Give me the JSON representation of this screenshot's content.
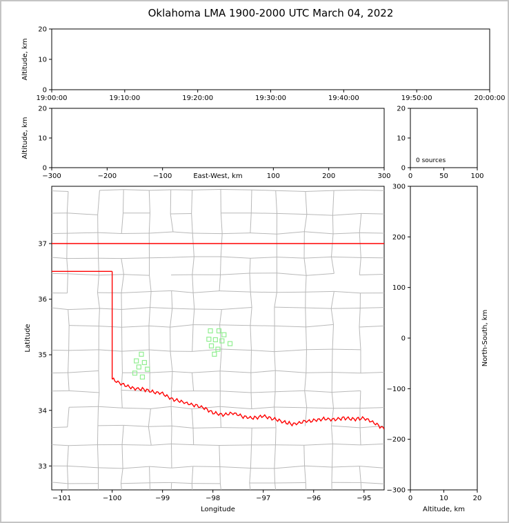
{
  "title": "Oklahoma LMA 1900-2000 UTC March 04, 2022",
  "colors": {
    "state_boundary": "#ff0000",
    "county_lines": "#b8b8b8",
    "source_marker": "#90ee90",
    "axis": "#000000"
  },
  "chart_data": [
    {
      "id": "time_height",
      "type": "scatter",
      "xlabel": "",
      "ylabel": "Altitude, km",
      "ylim": [
        0,
        20
      ],
      "xticks": [
        "19:00:00",
        "19:10:00",
        "19:20:00",
        "19:30:00",
        "19:40:00",
        "19:50:00",
        "20:00:00"
      ],
      "yticks": [
        0,
        10,
        20
      ],
      "points": []
    },
    {
      "id": "ew_height",
      "type": "scatter",
      "xlabel": "East-West, km",
      "ylabel": "Altitude, km",
      "xlim": [
        -300,
        300
      ],
      "ylim": [
        0,
        20
      ],
      "xticks": [
        -300,
        -200,
        -100,
        100,
        200,
        300
      ],
      "yticks": [
        0,
        10,
        20
      ],
      "points": []
    },
    {
      "id": "alt_histogram",
      "type": "line",
      "annotation": "0 sources",
      "xlim": [
        0,
        100
      ],
      "ylim": [
        0,
        20
      ],
      "xticks": [
        0,
        50,
        100
      ],
      "yticks": [
        0,
        10,
        20
      ],
      "points": []
    },
    {
      "id": "plan_view",
      "type": "scatter",
      "xlabel": "Longitude",
      "ylabel": "Latitude",
      "xlim": [
        -101.2,
        -94.6
      ],
      "ylim": [
        32.57,
        38.03
      ],
      "xticks": [
        -101,
        -100,
        -99,
        -98,
        -97,
        -96,
        -95
      ],
      "yticks": [
        33,
        34,
        35,
        36,
        37
      ],
      "marker": "open-square",
      "points": [
        [
          -98.05,
          35.43
        ],
        [
          -97.88,
          35.43
        ],
        [
          -97.78,
          35.36
        ],
        [
          -98.08,
          35.28
        ],
        [
          -97.95,
          35.27
        ],
        [
          -97.82,
          35.25
        ],
        [
          -97.66,
          35.2
        ],
        [
          -98.03,
          35.16
        ],
        [
          -97.9,
          35.1
        ],
        [
          -97.97,
          35.01
        ],
        [
          -99.42,
          35.01
        ],
        [
          -99.52,
          34.89
        ],
        [
          -99.36,
          34.86
        ],
        [
          -99.47,
          34.78
        ],
        [
          -99.3,
          34.74
        ],
        [
          -99.55,
          34.67
        ],
        [
          -99.4,
          34.6
        ]
      ],
      "state_boundary": {
        "north_border_lat": 37.0,
        "panhandle_south": [
          [
            -101.2,
            36.5
          ],
          [
            -100.0,
            36.5
          ]
        ],
        "west_border": [
          [
            -100.0,
            36.5
          ],
          [
            -100.0,
            34.56
          ]
        ],
        "red_river": [
          [
            -100.0,
            34.56
          ],
          [
            -99.8,
            34.47
          ],
          [
            -99.6,
            34.4
          ],
          [
            -99.4,
            34.38
          ],
          [
            -99.2,
            34.34
          ],
          [
            -99.0,
            34.3
          ],
          [
            -98.8,
            34.2
          ],
          [
            -98.6,
            34.15
          ],
          [
            -98.4,
            34.1
          ],
          [
            -98.2,
            34.05
          ],
          [
            -98.0,
            33.96
          ],
          [
            -97.8,
            33.92
          ],
          [
            -97.6,
            33.95
          ],
          [
            -97.4,
            33.89
          ],
          [
            -97.2,
            33.86
          ],
          [
            -97.0,
            33.9
          ],
          [
            -96.8,
            33.85
          ],
          [
            -96.6,
            33.79
          ],
          [
            -96.4,
            33.75
          ],
          [
            -96.2,
            33.8
          ],
          [
            -96.0,
            33.82
          ],
          [
            -95.8,
            33.85
          ],
          [
            -95.6,
            33.83
          ],
          [
            -95.4,
            33.86
          ],
          [
            -95.2,
            33.84
          ],
          [
            -95.0,
            33.86
          ],
          [
            -94.8,
            33.78
          ],
          [
            -94.6,
            33.66
          ]
        ]
      }
    },
    {
      "id": "ns_height",
      "type": "scatter",
      "xlabel": "Altitude, km",
      "ylabel": "North-South, km",
      "xlim": [
        0,
        20
      ],
      "ylim": [
        -300,
        300
      ],
      "xticks": [
        0,
        10,
        20
      ],
      "yticks": [
        300,
        200,
        100,
        0,
        -100,
        -200,
        -300
      ],
      "points": []
    }
  ]
}
